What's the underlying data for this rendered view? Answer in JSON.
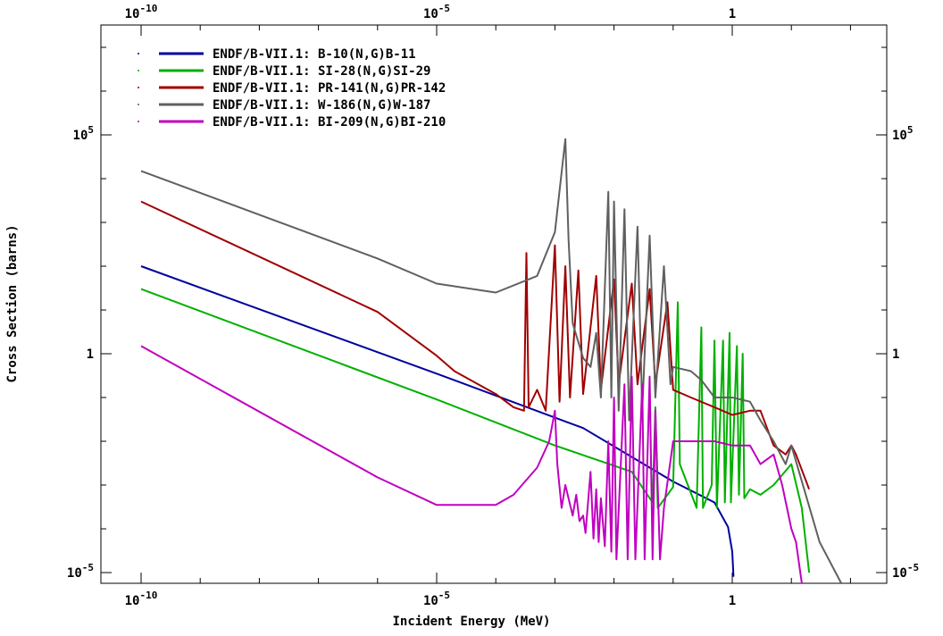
{
  "chart_data": {
    "type": "line",
    "title": "",
    "xlabel": "Incident Energy (MeV)",
    "ylabel": "Cross Section (barns)",
    "x_scale": "log",
    "y_scale": "log",
    "xlim": [
      1e-12,
      1000.0
    ],
    "ylim": [
      1e-05,
      10000000.0
    ],
    "grid": false,
    "legend_position": "top-left",
    "x_ticks": [
      {
        "value": 1e-10,
        "base": "10",
        "exp": "-10",
        "plain": ""
      },
      {
        "value": 1e-05,
        "base": "10",
        "exp": "-5",
        "plain": ""
      },
      {
        "value": 1,
        "base": "",
        "exp": "",
        "plain": "1"
      }
    ],
    "y_ticks": [
      {
        "value": 1e-05,
        "base": "10",
        "exp": "-5",
        "plain": ""
      },
      {
        "value": 1,
        "base": "",
        "exp": "",
        "plain": "1"
      },
      {
        "value": 100000.0,
        "base": "10",
        "exp": "5",
        "plain": ""
      }
    ],
    "series": [
      {
        "name": "ENDF/B-VII.1: B-10(N,G)B-11",
        "color": "#0000a0",
        "points": [
          [
            1e-10,
            100
          ],
          [
            1e-05,
            0.35
          ],
          [
            0.003,
            0.02
          ],
          [
            0.1,
            0.0012
          ],
          [
            0.5,
            0.0004
          ],
          [
            0.85,
            0.00011
          ],
          [
            1.0,
            3e-05
          ],
          [
            1.05,
            8e-06
          ]
        ]
      },
      {
        "name": "ENDF/B-VII.1: SI-28(N,G)SI-29",
        "color": "#00b000",
        "points": [
          [
            1e-10,
            30
          ],
          [
            1e-05,
            0.09
          ],
          [
            0.001,
            0.008
          ],
          [
            0.02,
            0.002
          ],
          [
            0.045,
            0.0004
          ],
          [
            0.05,
            0.06
          ],
          [
            0.055,
            0.0003
          ],
          [
            0.1,
            0.0009
          ],
          [
            0.12,
            15
          ],
          [
            0.13,
            0.003
          ],
          [
            0.25,
            0.0003
          ],
          [
            0.3,
            4
          ],
          [
            0.32,
            0.0003
          ],
          [
            0.45,
            0.001
          ],
          [
            0.5,
            2
          ],
          [
            0.55,
            0.0003
          ],
          [
            0.7,
            2
          ],
          [
            0.75,
            0.0004
          ],
          [
            0.9,
            3
          ],
          [
            0.95,
            0.0004
          ],
          [
            1.2,
            1.5
          ],
          [
            1.3,
            0.0006
          ],
          [
            1.5,
            1
          ],
          [
            1.6,
            0.0005
          ],
          [
            2.0,
            0.0008
          ],
          [
            3.0,
            0.0006
          ],
          [
            5.0,
            0.001
          ],
          [
            10.0,
            0.003
          ],
          [
            15.0,
            0.0003
          ],
          [
            20.0,
            1e-05
          ]
        ]
      },
      {
        "name": "ENDF/B-VII.1: PR-141(N,G)PR-142",
        "color": "#a00000",
        "points": [
          [
            1e-10,
            3000
          ],
          [
            1e-06,
            9
          ],
          [
            1e-05,
            0.9
          ],
          [
            2e-05,
            0.4
          ],
          [
            0.0001,
            0.12
          ],
          [
            0.0002,
            0.06
          ],
          [
            0.0003,
            0.05
          ],
          [
            0.00033,
            200
          ],
          [
            0.00036,
            0.06
          ],
          [
            0.0005,
            0.15
          ],
          [
            0.0007,
            0.05
          ],
          [
            0.001,
            300
          ],
          [
            0.0012,
            0.08
          ],
          [
            0.0015,
            100
          ],
          [
            0.0018,
            0.1
          ],
          [
            0.0025,
            80
          ],
          [
            0.003,
            0.12
          ],
          [
            0.005,
            60
          ],
          [
            0.006,
            0.15
          ],
          [
            0.01,
            50
          ],
          [
            0.012,
            0.2
          ],
          [
            0.02,
            40
          ],
          [
            0.025,
            0.2
          ],
          [
            0.04,
            30
          ],
          [
            0.05,
            0.2
          ],
          [
            0.08,
            15
          ],
          [
            0.1,
            0.15
          ],
          [
            0.2,
            0.1
          ],
          [
            0.5,
            0.06
          ],
          [
            1.0,
            0.04
          ],
          [
            2.0,
            0.05
          ],
          [
            3.0,
            0.05
          ],
          [
            5.0,
            0.008
          ],
          [
            8.0,
            0.005
          ],
          [
            10.0,
            0.008
          ],
          [
            12.0,
            0.005
          ],
          [
            20.0,
            0.0008
          ]
        ]
      },
      {
        "name": "ENDF/B-VII.1: W-186(N,G)W-187",
        "color": "#606060",
        "points": [
          [
            1e-10,
            15000
          ],
          [
            1e-08,
            1500
          ],
          [
            1e-06,
            150
          ],
          [
            1e-05,
            40
          ],
          [
            0.0001,
            25
          ],
          [
            0.0005,
            60
          ],
          [
            0.001,
            600
          ],
          [
            0.0015,
            80000
          ],
          [
            0.0017,
            400
          ],
          [
            0.002,
            5
          ],
          [
            0.003,
            0.8
          ],
          [
            0.004,
            0.5
          ],
          [
            0.005,
            3
          ],
          [
            0.006,
            0.1
          ],
          [
            0.008,
            5000
          ],
          [
            0.009,
            0.1
          ],
          [
            0.01,
            3000
          ],
          [
            0.012,
            0.05
          ],
          [
            0.015,
            2000
          ],
          [
            0.018,
            0.03
          ],
          [
            0.025,
            800
          ],
          [
            0.03,
            0.05
          ],
          [
            0.04,
            500
          ],
          [
            0.05,
            0.1
          ],
          [
            0.07,
            100
          ],
          [
            0.09,
            0.2
          ],
          [
            0.1,
            0.5
          ],
          [
            0.2,
            0.4
          ],
          [
            0.3,
            0.25
          ],
          [
            0.5,
            0.1
          ],
          [
            1.0,
            0.1
          ],
          [
            2.0,
            0.08
          ],
          [
            3.0,
            0.03
          ],
          [
            5.0,
            0.01
          ],
          [
            8.0,
            0.003
          ],
          [
            10.0,
            0.008
          ],
          [
            30.0,
            5e-05
          ],
          [
            70.0,
            5e-06
          ]
        ]
      },
      {
        "name": "ENDF/B-VII.1: BI-209(N,G)BI-210",
        "color": "#c000c0",
        "points": [
          [
            1e-10,
            1.5
          ],
          [
            1e-06,
            0.0015
          ],
          [
            1e-05,
            0.00035
          ],
          [
            0.0001,
            0.00035
          ],
          [
            0.0002,
            0.0006
          ],
          [
            0.0005,
            0.0025
          ],
          [
            0.0008,
            0.01
          ],
          [
            0.001,
            0.05
          ],
          [
            0.0011,
            0.003
          ],
          [
            0.0013,
            0.0003
          ],
          [
            0.0015,
            0.001
          ],
          [
            0.002,
            0.0002
          ],
          [
            0.0023,
            0.0006
          ],
          [
            0.0026,
            0.00015
          ],
          [
            0.003,
            0.0002
          ],
          [
            0.0033,
            8e-05
          ],
          [
            0.004,
            0.002
          ],
          [
            0.0045,
            6e-05
          ],
          [
            0.005,
            0.0008
          ],
          [
            0.0055,
            5e-05
          ],
          [
            0.006,
            0.0005
          ],
          [
            0.007,
            4e-05
          ],
          [
            0.008,
            0.01
          ],
          [
            0.009,
            3e-05
          ],
          [
            0.01,
            0.1
          ],
          [
            0.011,
            2e-05
          ],
          [
            0.015,
            0.2
          ],
          [
            0.017,
            2e-05
          ],
          [
            0.02,
            0.3
          ],
          [
            0.023,
            2e-05
          ],
          [
            0.03,
            0.2
          ],
          [
            0.033,
            2e-05
          ],
          [
            0.04,
            0.3
          ],
          [
            0.045,
            2e-05
          ],
          [
            0.05,
            0.05
          ],
          [
            0.06,
            2e-05
          ],
          [
            0.07,
            0.0003
          ],
          [
            0.1,
            0.01
          ],
          [
            0.3,
            0.01
          ],
          [
            0.5,
            0.01
          ],
          [
            1.0,
            0.008
          ],
          [
            2.0,
            0.008
          ],
          [
            3.0,
            0.003
          ],
          [
            5.0,
            0.005
          ],
          [
            7.0,
            0.001
          ],
          [
            10.0,
            0.0001
          ],
          [
            12.0,
            5e-05
          ],
          [
            15.0,
            5e-06
          ]
        ]
      }
    ]
  }
}
